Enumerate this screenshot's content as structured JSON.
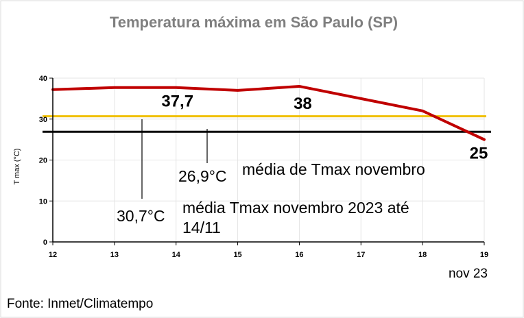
{
  "chart_data": {
    "type": "line",
    "title": "Temperatura máxima em São Paulo (SP)",
    "ylabel": "T max (°C)",
    "x_unit_label": "nov 23",
    "source": "Fonte: Inmet/Climatempo",
    "xlim": [
      12,
      19
    ],
    "ylim": [
      0,
      40
    ],
    "x_ticks": [
      "12",
      "13",
      "14",
      "15",
      "16",
      "17",
      "18",
      "19"
    ],
    "y_ticks": [
      "0",
      "10",
      "20",
      "30",
      "40"
    ],
    "grid": true,
    "series": [
      {
        "x": [
          12,
          13,
          14,
          15,
          16,
          17,
          18,
          19
        ],
        "values": [
          37.2,
          37.7,
          37.7,
          37.0,
          38.0,
          35.0,
          32.0,
          25.0
        ],
        "color": "#c00000"
      }
    ],
    "data_labels": [
      {
        "x": 14,
        "value": 37.7,
        "text": "37,7"
      },
      {
        "x": 16,
        "value": 38.0,
        "text": "38"
      },
      {
        "x": 19,
        "value": 25.0,
        "text": "25"
      }
    ],
    "reference_lines": [
      {
        "value": 30.7,
        "color": "#f0c000",
        "value_text": "30,7°C",
        "label_lines": [
          "média Tmax novembro 2023 até",
          "14/11"
        ]
      },
      {
        "value": 26.9,
        "color": "#000000",
        "value_text": "26,9°C",
        "label_lines": [
          "média de Tmax novembro"
        ]
      }
    ]
  }
}
